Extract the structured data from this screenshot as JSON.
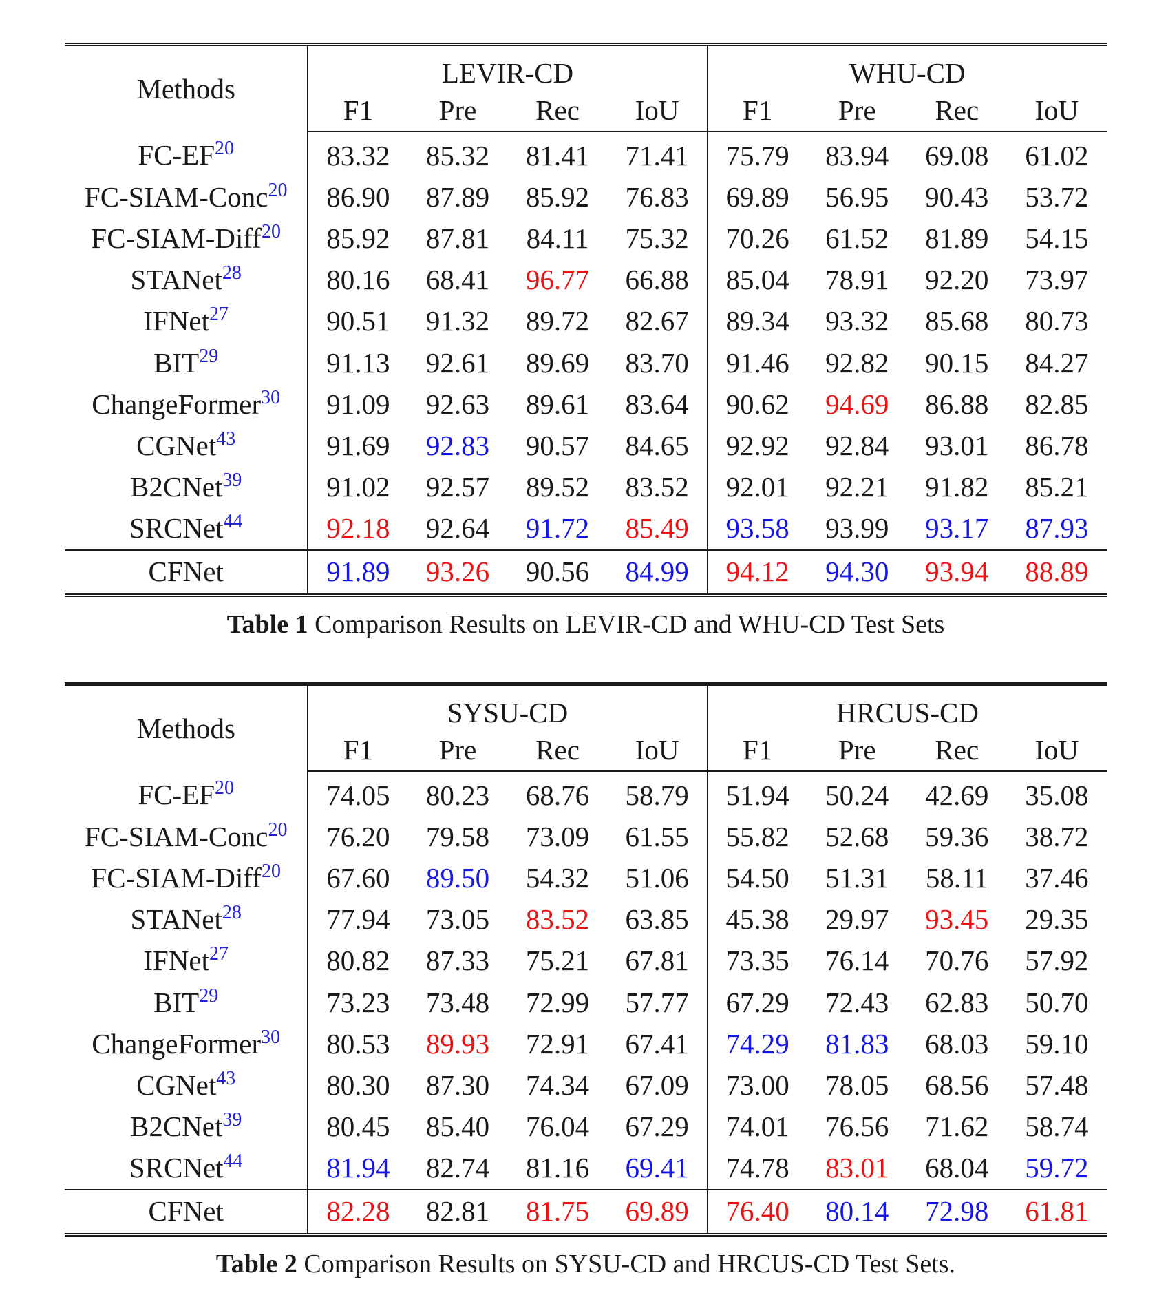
{
  "colors": {
    "best": "#ee1111",
    "second": "#1616e8"
  },
  "metrics": [
    "F1",
    "Pre",
    "Rec",
    "IoU"
  ],
  "methods_header": "Methods",
  "tables": [
    {
      "datasets": [
        "LEVIR-CD",
        "WHU-CD"
      ],
      "caption_label": "Table 1",
      "caption_text": " Comparison Results on LEVIR-CD and WHU-CD Test Sets",
      "rows": [
        {
          "name": "FC-EF",
          "ref": "20",
          "values": [
            {
              "v": "83.32",
              "s": ""
            },
            {
              "v": "85.32",
              "s": ""
            },
            {
              "v": "81.41",
              "s": ""
            },
            {
              "v": "71.41",
              "s": ""
            },
            {
              "v": "75.79",
              "s": ""
            },
            {
              "v": "83.94",
              "s": ""
            },
            {
              "v": "69.08",
              "s": ""
            },
            {
              "v": "61.02",
              "s": ""
            }
          ]
        },
        {
          "name": "FC-SIAM-Conc",
          "ref": "20",
          "values": [
            {
              "v": "86.90",
              "s": ""
            },
            {
              "v": "87.89",
              "s": ""
            },
            {
              "v": "85.92",
              "s": ""
            },
            {
              "v": "76.83",
              "s": ""
            },
            {
              "v": "69.89",
              "s": ""
            },
            {
              "v": "56.95",
              "s": ""
            },
            {
              "v": "90.43",
              "s": ""
            },
            {
              "v": "53.72",
              "s": ""
            }
          ]
        },
        {
          "name": "FC-SIAM-Diff",
          "ref": "20",
          "values": [
            {
              "v": "85.92",
              "s": ""
            },
            {
              "v": "87.81",
              "s": ""
            },
            {
              "v": "84.11",
              "s": ""
            },
            {
              "v": "75.32",
              "s": ""
            },
            {
              "v": "70.26",
              "s": ""
            },
            {
              "v": "61.52",
              "s": ""
            },
            {
              "v": "81.89",
              "s": ""
            },
            {
              "v": "54.15",
              "s": ""
            }
          ]
        },
        {
          "name": "STANet",
          "ref": "28",
          "values": [
            {
              "v": "80.16",
              "s": ""
            },
            {
              "v": "68.41",
              "s": ""
            },
            {
              "v": "96.77",
              "s": "red"
            },
            {
              "v": "66.88",
              "s": ""
            },
            {
              "v": "85.04",
              "s": ""
            },
            {
              "v": "78.91",
              "s": ""
            },
            {
              "v": "92.20",
              "s": ""
            },
            {
              "v": "73.97",
              "s": ""
            }
          ]
        },
        {
          "name": "IFNet",
          "ref": "27",
          "values": [
            {
              "v": "90.51",
              "s": ""
            },
            {
              "v": "91.32",
              "s": ""
            },
            {
              "v": "89.72",
              "s": ""
            },
            {
              "v": "82.67",
              "s": ""
            },
            {
              "v": "89.34",
              "s": ""
            },
            {
              "v": "93.32",
              "s": ""
            },
            {
              "v": "85.68",
              "s": ""
            },
            {
              "v": "80.73",
              "s": ""
            }
          ]
        },
        {
          "name": "BIT",
          "ref": "29",
          "values": [
            {
              "v": "91.13",
              "s": ""
            },
            {
              "v": "92.61",
              "s": ""
            },
            {
              "v": "89.69",
              "s": ""
            },
            {
              "v": "83.70",
              "s": ""
            },
            {
              "v": "91.46",
              "s": ""
            },
            {
              "v": "92.82",
              "s": ""
            },
            {
              "v": "90.15",
              "s": ""
            },
            {
              "v": "84.27",
              "s": ""
            }
          ]
        },
        {
          "name": "ChangeFormer",
          "ref": "30",
          "values": [
            {
              "v": "91.09",
              "s": ""
            },
            {
              "v": "92.63",
              "s": ""
            },
            {
              "v": "89.61",
              "s": ""
            },
            {
              "v": "83.64",
              "s": ""
            },
            {
              "v": "90.62",
              "s": ""
            },
            {
              "v": "94.69",
              "s": "red"
            },
            {
              "v": "86.88",
              "s": ""
            },
            {
              "v": "82.85",
              "s": ""
            }
          ]
        },
        {
          "name": "CGNet",
          "ref": "43",
          "values": [
            {
              "v": "91.69",
              "s": "bold"
            },
            {
              "v": "92.83",
              "s": "blue"
            },
            {
              "v": "90.57",
              "s": "bold"
            },
            {
              "v": "84.65",
              "s": "bold"
            },
            {
              "v": "92.92",
              "s": "bold"
            },
            {
              "v": "92.84",
              "s": ""
            },
            {
              "v": "93.01",
              "s": "bold"
            },
            {
              "v": "86.78",
              "s": "bold"
            }
          ]
        },
        {
          "name": "B2CNet",
          "ref": "39",
          "values": [
            {
              "v": "91.02",
              "s": ""
            },
            {
              "v": "92.57",
              "s": ""
            },
            {
              "v": "89.52",
              "s": ""
            },
            {
              "v": "83.52",
              "s": ""
            },
            {
              "v": "92.01",
              "s": ""
            },
            {
              "v": "92.21",
              "s": ""
            },
            {
              "v": "91.82",
              "s": ""
            },
            {
              "v": "85.21",
              "s": ""
            }
          ]
        },
        {
          "name": "SRCNet",
          "ref": "44",
          "values": [
            {
              "v": "92.18",
              "s": "red"
            },
            {
              "v": "92.64",
              "s": "bold"
            },
            {
              "v": "91.72",
              "s": "blue"
            },
            {
              "v": "85.49",
              "s": "red"
            },
            {
              "v": "93.58",
              "s": "blue"
            },
            {
              "v": "93.99",
              "s": "bold"
            },
            {
              "v": "93.17",
              "s": "blue"
            },
            {
              "v": "87.93",
              "s": "blue"
            }
          ]
        }
      ],
      "ours": {
        "name": "CFNet",
        "values": [
          {
            "v": "91.89",
            "s": "blue"
          },
          {
            "v": "93.26",
            "s": "red"
          },
          {
            "v": "90.56",
            "s": ""
          },
          {
            "v": "84.99",
            "s": "blue"
          },
          {
            "v": "94.12",
            "s": "red"
          },
          {
            "v": "94.30",
            "s": "blue"
          },
          {
            "v": "93.94",
            "s": "red"
          },
          {
            "v": "88.89",
            "s": "red"
          }
        ]
      }
    },
    {
      "datasets": [
        "SYSU-CD",
        "HRCUS-CD"
      ],
      "caption_label": "Table 2",
      "caption_text": " Comparison Results on SYSU-CD and HRCUS-CD Test Sets.",
      "rows": [
        {
          "name": "FC-EF",
          "ref": "20",
          "values": [
            {
              "v": "74.05",
              "s": ""
            },
            {
              "v": "80.23",
              "s": ""
            },
            {
              "v": "68.76",
              "s": ""
            },
            {
              "v": "58.79",
              "s": ""
            },
            {
              "v": "51.94",
              "s": ""
            },
            {
              "v": "50.24",
              "s": ""
            },
            {
              "v": "42.69",
              "s": ""
            },
            {
              "v": "35.08",
              "s": ""
            }
          ]
        },
        {
          "name": "FC-SIAM-Conc",
          "ref": "20",
          "values": [
            {
              "v": "76.20",
              "s": ""
            },
            {
              "v": "79.58",
              "s": ""
            },
            {
              "v": "73.09",
              "s": ""
            },
            {
              "v": "61.55",
              "s": ""
            },
            {
              "v": "55.82",
              "s": ""
            },
            {
              "v": "52.68",
              "s": ""
            },
            {
              "v": "59.36",
              "s": ""
            },
            {
              "v": "38.72",
              "s": ""
            }
          ]
        },
        {
          "name": "FC-SIAM-Diff",
          "ref": "20",
          "values": [
            {
              "v": "67.60",
              "s": ""
            },
            {
              "v": "89.50",
              "s": "blue"
            },
            {
              "v": "54.32",
              "s": ""
            },
            {
              "v": "51.06",
              "s": ""
            },
            {
              "v": "54.50",
              "s": ""
            },
            {
              "v": "51.31",
              "s": ""
            },
            {
              "v": "58.11",
              "s": ""
            },
            {
              "v": "37.46",
              "s": ""
            }
          ]
        },
        {
          "name": "STANet",
          "ref": "28",
          "values": [
            {
              "v": "77.94",
              "s": ""
            },
            {
              "v": "73.05",
              "s": ""
            },
            {
              "v": "83.52",
              "s": "red"
            },
            {
              "v": "63.85",
              "s": ""
            },
            {
              "v": "45.38",
              "s": ""
            },
            {
              "v": "29.97",
              "s": ""
            },
            {
              "v": "93.45",
              "s": "red"
            },
            {
              "v": "29.35",
              "s": ""
            }
          ]
        },
        {
          "name": "IFNet",
          "ref": "27",
          "values": [
            {
              "v": "80.82",
              "s": "bold"
            },
            {
              "v": "87.33",
              "s": "bold"
            },
            {
              "v": "75.21",
              "s": ""
            },
            {
              "v": "67.81",
              "s": "bold"
            },
            {
              "v": "73.35",
              "s": ""
            },
            {
              "v": "76.14",
              "s": ""
            },
            {
              "v": "70.76",
              "s": ""
            },
            {
              "v": "57.92",
              "s": ""
            }
          ]
        },
        {
          "name": "BIT",
          "ref": "29",
          "values": [
            {
              "v": "73.23",
              "s": ""
            },
            {
              "v": "73.48",
              "s": ""
            },
            {
              "v": "72.99",
              "s": ""
            },
            {
              "v": "57.77",
              "s": ""
            },
            {
              "v": "67.29",
              "s": ""
            },
            {
              "v": "72.43",
              "s": ""
            },
            {
              "v": "62.83",
              "s": ""
            },
            {
              "v": "50.70",
              "s": ""
            }
          ]
        },
        {
          "name": "ChangeFormer",
          "ref": "30",
          "values": [
            {
              "v": "80.53",
              "s": ""
            },
            {
              "v": "89.93",
              "s": "red"
            },
            {
              "v": "72.91",
              "s": ""
            },
            {
              "v": "67.41",
              "s": ""
            },
            {
              "v": "74.29",
              "s": "blue"
            },
            {
              "v": "81.83",
              "s": "blue"
            },
            {
              "v": "68.03",
              "s": ""
            },
            {
              "v": "59.10",
              "s": "bold"
            }
          ]
        },
        {
          "name": "CGNet",
          "ref": "43",
          "values": [
            {
              "v": "80.30",
              "s": ""
            },
            {
              "v": "87.30",
              "s": ""
            },
            {
              "v": "74.34",
              "s": ""
            },
            {
              "v": "67.09",
              "s": ""
            },
            {
              "v": "73.00",
              "s": ""
            },
            {
              "v": "78.05",
              "s": ""
            },
            {
              "v": "68.56",
              "s": ""
            },
            {
              "v": "57.48",
              "s": ""
            }
          ]
        },
        {
          "name": "B2CNet",
          "ref": "39",
          "values": [
            {
              "v": "80.45",
              "s": ""
            },
            {
              "v": "85.40",
              "s": ""
            },
            {
              "v": "76.04",
              "s": ""
            },
            {
              "v": "67.29",
              "s": ""
            },
            {
              "v": "74.01",
              "s": "bold"
            },
            {
              "v": "76.56",
              "s": ""
            },
            {
              "v": "71.62",
              "s": "bold"
            },
            {
              "v": "58.74",
              "s": ""
            }
          ]
        },
        {
          "name": "SRCNet",
          "ref": "44",
          "values": [
            {
              "v": "81.94",
              "s": "blue"
            },
            {
              "v": "82.74",
              "s": ""
            },
            {
              "v": "81.16",
              "s": "bold"
            },
            {
              "v": "69.41",
              "s": "blue"
            },
            {
              "v": "74.78",
              "s": ""
            },
            {
              "v": "83.01",
              "s": "red"
            },
            {
              "v": "68.04",
              "s": ""
            },
            {
              "v": "59.72",
              "s": "blue"
            }
          ]
        }
      ],
      "ours": {
        "name": "CFNet",
        "values": [
          {
            "v": "82.28",
            "s": "red"
          },
          {
            "v": "82.81",
            "s": ""
          },
          {
            "v": "81.75",
            "s": "red"
          },
          {
            "v": "69.89",
            "s": "red"
          },
          {
            "v": "76.40",
            "s": "red"
          },
          {
            "v": "80.14",
            "s": "blue"
          },
          {
            "v": "72.98",
            "s": "blue"
          },
          {
            "v": "61.81",
            "s": "red"
          }
        ]
      }
    }
  ]
}
